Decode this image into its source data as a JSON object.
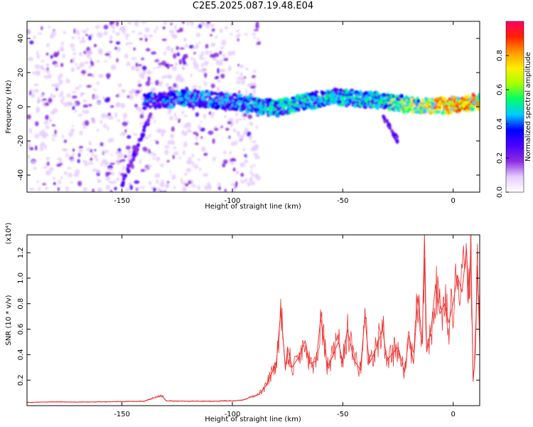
{
  "chart_data": [
    {
      "type": "heatmap",
      "title": "C2E5.2025.087.19.48.E04",
      "xlabel": "Height of straight line (km)",
      "ylabel": "Frequency (Hz)",
      "xlim": [
        -193,
        12
      ],
      "ylim": [
        -50,
        50
      ],
      "x_ticks": [
        -150,
        -100,
        -50,
        0
      ],
      "x_tick_labels": [
        "-150",
        "-100",
        "-50",
        "0"
      ],
      "y_ticks": [
        -40,
        -20,
        0,
        20,
        40
      ],
      "y_tick_labels": [
        "-40",
        "-20",
        "0",
        "20",
        "40"
      ],
      "colorbar": {
        "label": "Normalized spectral amplitude",
        "range": [
          0,
          1
        ],
        "ticks": [
          0.0,
          0.2,
          0.4,
          0.6,
          0.8
        ],
        "tick_labels": [
          "0.0",
          "0.2",
          "0.4",
          "0.6",
          "0.8"
        ],
        "colors": [
          "#ffffff",
          "#e6ccff",
          "#8a2be2",
          "#4b00ff",
          "#0000ff",
          "#00ccff",
          "#00ff66",
          "#aaff00",
          "#ffee00",
          "#ff9900",
          "#ff2200",
          "#ff0066"
        ]
      },
      "regions": [
        {
          "name": "noise",
          "x": [
            -193,
            -88
          ],
          "freq": [
            -50,
            50
          ],
          "amplitude": 0.2
        },
        {
          "name": "ridge",
          "x": [
            -140,
            12
          ],
          "freq_center": [
            3,
            5,
            3,
            1,
            -1,
            2,
            6,
            5,
            3,
            1,
            0,
            1,
            3
          ],
          "freq_center_x": [
            -140,
            -120,
            -100,
            -90,
            -80,
            -70,
            -55,
            -45,
            -30,
            -20,
            -10,
            0,
            12
          ],
          "amplitude": [
            0.4,
            0.45,
            0.45,
            0.5,
            0.55,
            0.55,
            0.5,
            0.5,
            0.55,
            0.65,
            0.8,
            0.95,
            0.9
          ]
        },
        {
          "name": "tail",
          "x": [
            -32,
            -25
          ],
          "freq": [
            -20,
            -5
          ],
          "amplitude": 0.3
        },
        {
          "name": "streak",
          "x": [
            -150,
            -137
          ],
          "freq": [
            -45,
            -5
          ],
          "amplitude": 0.3
        }
      ]
    },
    {
      "type": "line",
      "xlabel": "Height of straight line (km)",
      "ylabel": "SNR (10 * v/v)",
      "y_multiplier": "(x10⁴)",
      "xlim": [
        -193,
        12
      ],
      "ylim": [
        0,
        13400
      ],
      "x_ticks": [
        -150,
        -100,
        -50,
        0
      ],
      "x_tick_labels": [
        "-150",
        "-100",
        "-50",
        "0"
      ],
      "y_ticks": [
        2000,
        4000,
        6000,
        8000,
        10000,
        12000
      ],
      "y_tick_labels": [
        "0.2",
        "0.4",
        "0.6",
        "0.8",
        "1.0",
        "1.2"
      ],
      "color": "#ee3333",
      "series": [
        {
          "x": [
            -193,
            -180,
            -170,
            -160,
            -150,
            -140,
            -132,
            -130,
            -120,
            -110,
            -100,
            -95,
            -92,
            -88,
            -85,
            -82,
            -80,
            -78,
            -76,
            -75,
            -73,
            -70,
            -67,
            -65,
            -62,
            -60,
            -57,
            -55,
            -52,
            -50,
            -48,
            -45,
            -42,
            -40,
            -38,
            -35,
            -32,
            -30,
            -28,
            -25,
            -22,
            -20,
            -18,
            -16,
            -14,
            -13,
            -12,
            -10,
            -8,
            -6,
            -4,
            -2,
            0,
            2,
            4,
            6,
            7,
            8,
            9,
            10,
            11,
            12
          ],
          "y": [
            250,
            300,
            280,
            300,
            320,
            350,
            800,
            380,
            350,
            350,
            380,
            450,
            650,
            900,
            1500,
            2600,
            3500,
            7600,
            2800,
            4600,
            3000,
            3800,
            5100,
            3300,
            3500,
            6900,
            3000,
            3700,
            5000,
            3400,
            6000,
            3600,
            2800,
            7000,
            3300,
            4400,
            6100,
            3500,
            4000,
            4600,
            2600,
            5500,
            3300,
            8600,
            5000,
            13400,
            4200,
            6000,
            9500,
            7200,
            8000,
            6500,
            8100,
            10200,
            8900,
            12300,
            8400,
            12700,
            1900,
            4000,
            11000,
            4700
          ]
        }
      ]
    }
  ]
}
